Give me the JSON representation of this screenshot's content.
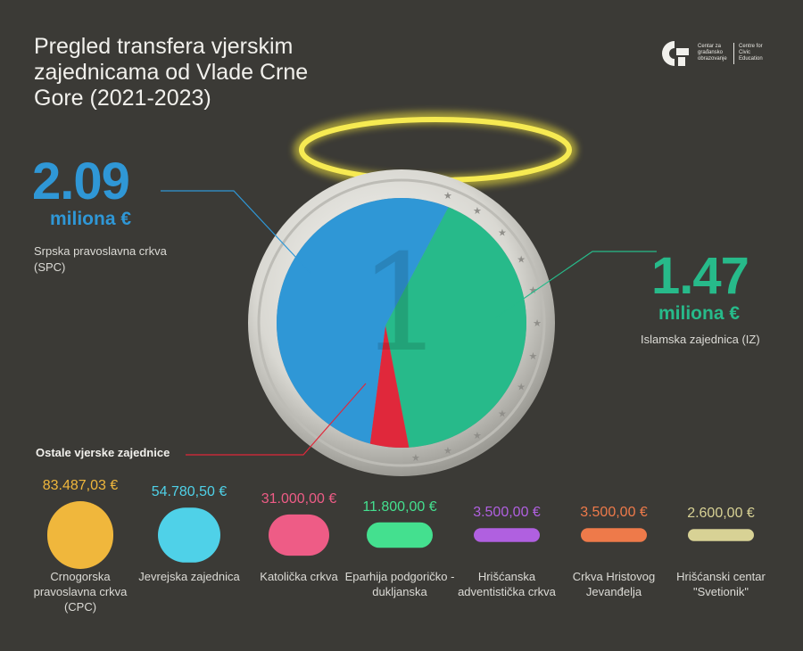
{
  "header": {
    "title": "Pregled transfera vjerskim zajednicama od Vlade Crne Gore (2021-2023)"
  },
  "logo": {
    "text_left": "Centar za građansko obrazovanje",
    "text_right": "Centre for Civic Education"
  },
  "colors": {
    "spc": "#2f97d6",
    "iz": "#27ba8a",
    "other": "#e0283b",
    "halo": "#f3e43a",
    "background": "#3b3a36"
  },
  "chart_data": {
    "type": "pie",
    "unit": "€",
    "highlights": [
      {
        "value": "2.09",
        "unit": "miliona €",
        "name": "Srpska pravoslavna crkva (SPC)"
      },
      {
        "value": "1.47",
        "unit": "miliona €",
        "name": "Islamska zajednica (IZ)"
      }
    ],
    "slices": [
      {
        "name": "Srpska pravoslavna crkva (SPC)",
        "value": 2090000
      },
      {
        "name": "Islamska zajednica (IZ)",
        "value": 1470000
      },
      {
        "name": "Ostale vjerske zajednice",
        "value": 190667.53
      }
    ],
    "other_heading": "Ostale vjerske zajednice",
    "other_items": [
      {
        "amount_label": "83.487,03 €",
        "value": 83487.03,
        "name": "Crnogorska pravoslavna crkva (CPC)",
        "color": "#f0b73c"
      },
      {
        "amount_label": "54.780,50 €",
        "value": 54780.5,
        "name": "Jevrejska zajednica",
        "color": "#4fd1e8"
      },
      {
        "amount_label": "31.000,00 €",
        "value": 31000.0,
        "name": "Katolička crkva",
        "color": "#ee5c86"
      },
      {
        "amount_label": "11.800,00 €",
        "value": 11800.0,
        "name": "Eparhija podgoričko - duklјanska",
        "color": "#44e08f"
      },
      {
        "amount_label": "3.500,00 €",
        "value": 3500.0,
        "name": "Hrišćanska adventistička crkva",
        "color": "#b060e0"
      },
      {
        "amount_label": "3.500,00 €",
        "value": 3500.0,
        "name": "Crkva Hristovog Jevanđelja",
        "color": "#ee7a4a"
      },
      {
        "amount_label": "2.600,00 €",
        "value": 2600.0,
        "name": "Hrišćanski centar \"Svetionik\"",
        "color": "#d8d295"
      }
    ]
  }
}
